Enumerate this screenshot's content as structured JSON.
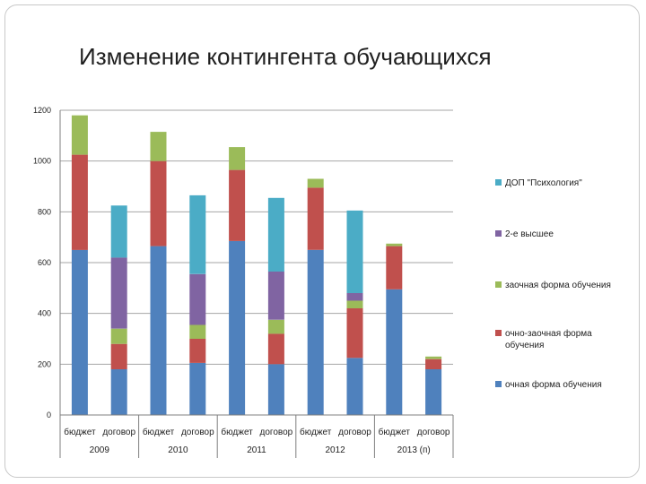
{
  "slide": {
    "title": "Изменение контингента обучающихся"
  },
  "chart_data": {
    "type": "bar",
    "stacked": true,
    "title": "",
    "xlabel": "",
    "ylabel": "",
    "ylim": [
      0,
      1200
    ],
    "yticks": [
      0,
      200,
      400,
      600,
      800,
      1000,
      1200
    ],
    "grid": true,
    "legend_position": "right",
    "categories": [
      "бюджет",
      "договор",
      "бюджет",
      "договор",
      "бюджет",
      "договор",
      "бюджет",
      "договор",
      "бюджет",
      "договор"
    ],
    "groups": [
      {
        "label": "2009"
      },
      {
        "label": "2010"
      },
      {
        "label": "2011"
      },
      {
        "label": "2012"
      },
      {
        "label": "2013 (п)"
      }
    ],
    "series": [
      {
        "name": "очная форма обучения",
        "color": "#4f81bd",
        "values": [
          650,
          180,
          665,
          205,
          685,
          200,
          650,
          225,
          495,
          180
        ]
      },
      {
        "name": "очно-заочная форма обучения",
        "color": "#c0504d",
        "values": [
          375,
          100,
          335,
          95,
          280,
          120,
          245,
          195,
          170,
          40
        ]
      },
      {
        "name": "заочная форма обучения",
        "color": "#9bbb59",
        "values": [
          155,
          60,
          115,
          55,
          90,
          55,
          35,
          30,
          10,
          10
        ]
      },
      {
        "name": "2-е высшее",
        "color": "#8064a2",
        "values": [
          0,
          280,
          0,
          200,
          0,
          190,
          0,
          30,
          0,
          0
        ]
      },
      {
        "name": "ДОП \"Психология\"",
        "color": "#4bacc6",
        "values": [
          0,
          205,
          0,
          310,
          0,
          290,
          0,
          325,
          0,
          0
        ]
      }
    ],
    "legend_order": [
      4,
      3,
      2,
      1,
      0
    ]
  }
}
